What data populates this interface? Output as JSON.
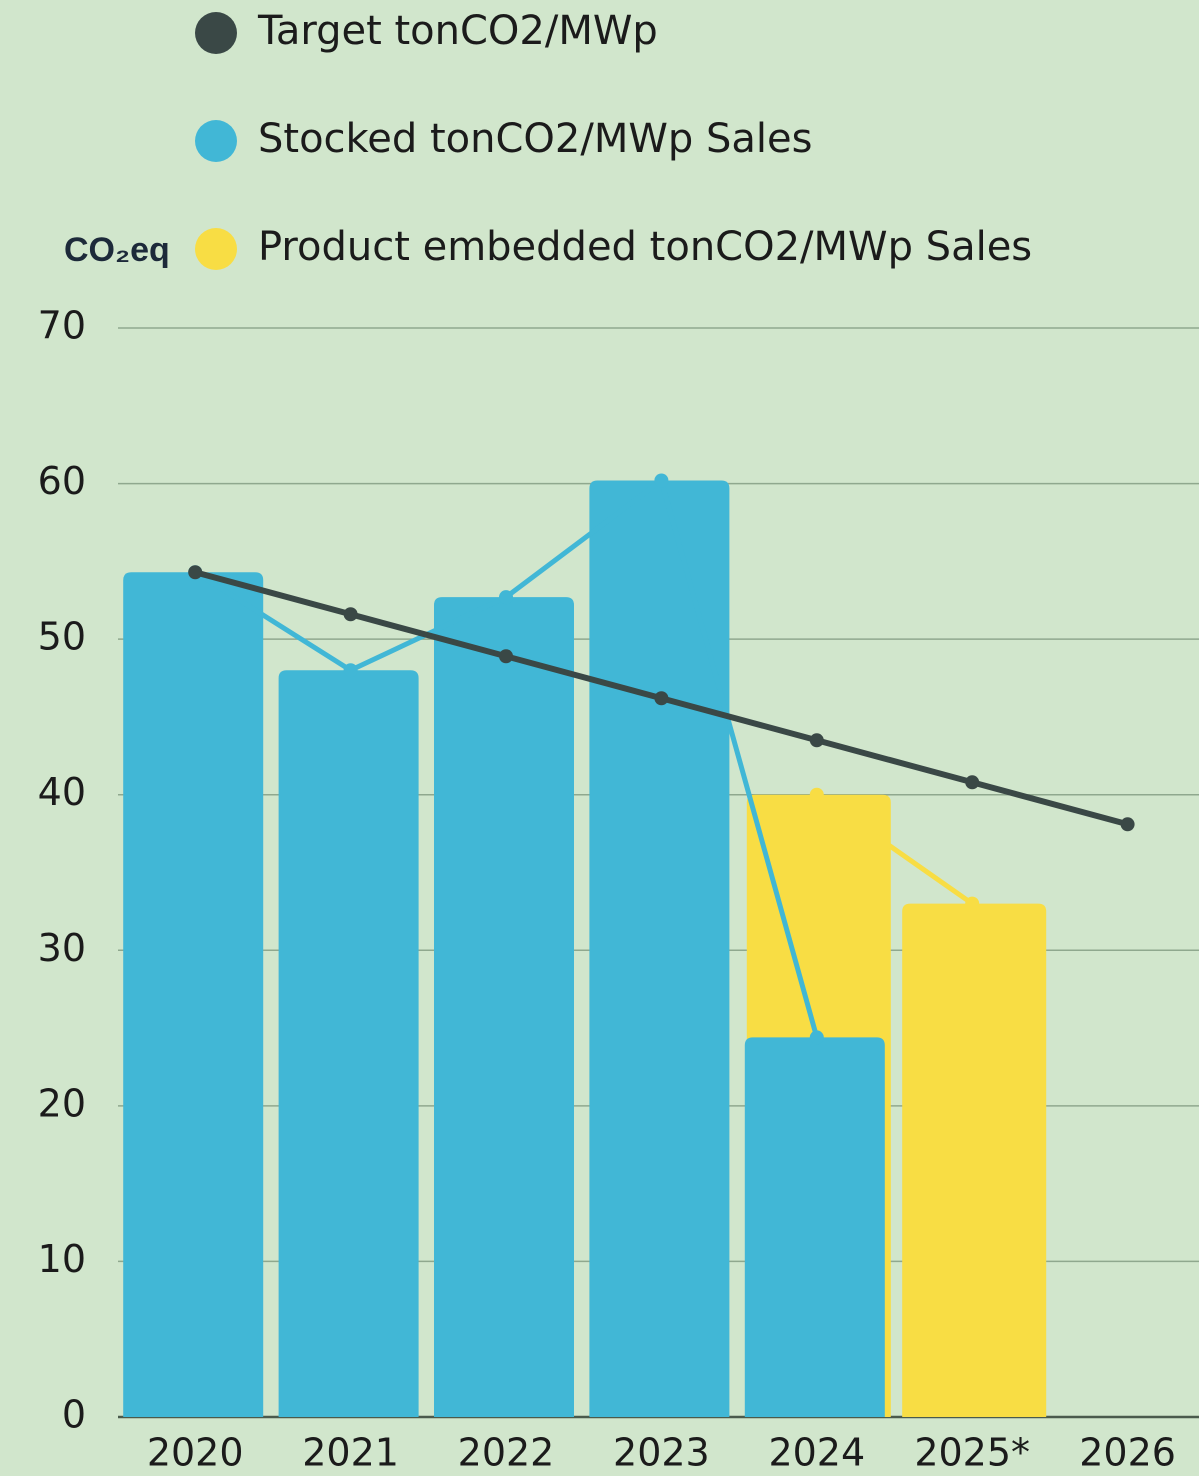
{
  "chart_data": {
    "type": "bar",
    "logo": "CO₂eq",
    "categories": [
      "2020",
      "2021",
      "2022",
      "2023",
      "2024",
      "2025*",
      "2026"
    ],
    "series": [
      {
        "name": "Target tonCO2/MWp",
        "color": "#3a4846",
        "marks": [
          "line"
        ],
        "values": [
          54.3,
          51.6,
          48.9,
          46.2,
          43.5,
          40.8,
          38.1
        ]
      },
      {
        "name": "Stocked tonCO2/MWp Sales",
        "color": "#41b7d6",
        "marks": [
          "bar",
          "line"
        ],
        "values": [
          54.3,
          48,
          52.7,
          60.2,
          24.4,
          null,
          null
        ]
      },
      {
        "name": "Product embedded tonCO2/MWp Sales",
        "color": "#f8dd44",
        "marks": [
          "bar",
          "line"
        ],
        "values": [
          null,
          null,
          null,
          null,
          40,
          33,
          null
        ]
      }
    ],
    "ylim": [
      0,
      70
    ],
    "yticks": [
      0,
      10,
      20,
      30,
      40,
      50,
      60,
      70
    ],
    "grid": true
  }
}
